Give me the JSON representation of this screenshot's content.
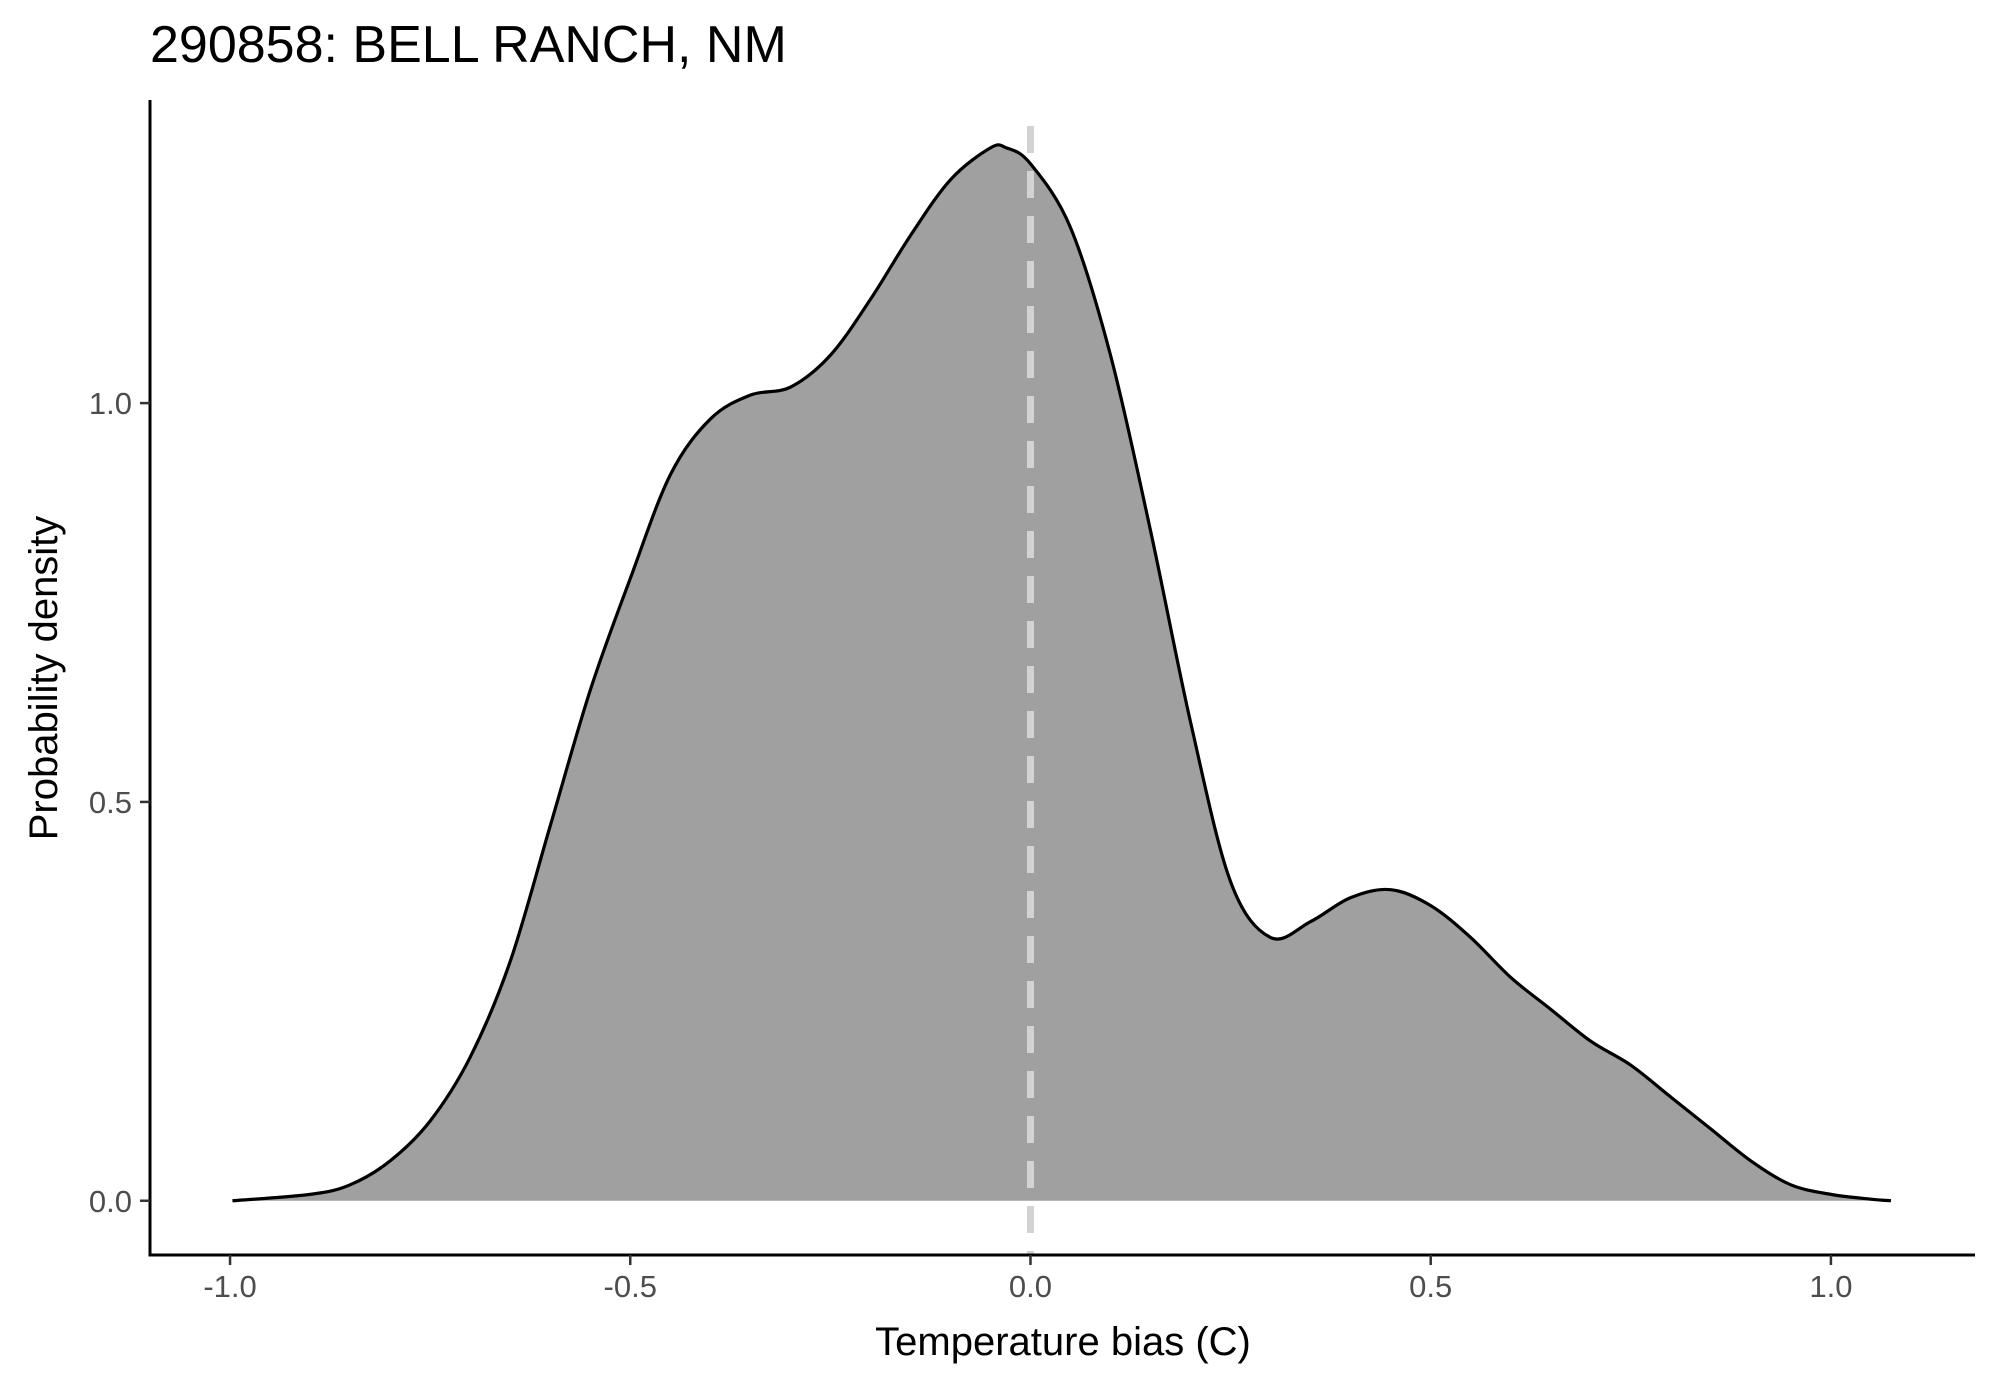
{
  "chart_data": {
    "type": "area",
    "title": "290858: BELL RANCH, NM",
    "xlabel": "Temperature bias (C)",
    "ylabel": "Probability density",
    "xlim": [
      -1.1,
      1.18
    ],
    "ylim": [
      -0.068,
      1.38
    ],
    "x_ticks": [
      -1.0,
      -0.5,
      0.0,
      0.5,
      1.0
    ],
    "x_tick_labels": [
      "-1.0",
      "-0.5",
      "0.0",
      "0.5",
      "1.0"
    ],
    "y_ticks": [
      0.0,
      0.5,
      1.0
    ],
    "y_tick_labels": [
      "0.0",
      "0.5",
      "1.0"
    ],
    "reference_line": {
      "x": 0.0,
      "style": "dashed",
      "color": "#d3d3d3"
    },
    "fill_color": "#a0a0a0",
    "line_color": "#000000",
    "grid": false,
    "series": [
      {
        "x": [
          -0.997,
          -0.9,
          -0.85,
          -0.8,
          -0.75,
          -0.7,
          -0.65,
          -0.6,
          -0.55,
          -0.5,
          -0.45,
          -0.4,
          -0.35,
          -0.3,
          -0.25,
          -0.2,
          -0.15,
          -0.1,
          -0.05,
          -0.03,
          0.0,
          0.05,
          0.1,
          0.15,
          0.2,
          0.25,
          0.3,
          0.35,
          0.4,
          0.45,
          0.5,
          0.55,
          0.6,
          0.65,
          0.7,
          0.75,
          0.8,
          0.85,
          0.9,
          0.95,
          1.0,
          1.05,
          1.075
        ],
        "y": [
          0.0,
          0.008,
          0.02,
          0.05,
          0.1,
          0.18,
          0.3,
          0.47,
          0.64,
          0.78,
          0.91,
          0.98,
          1.01,
          1.02,
          1.06,
          1.13,
          1.21,
          1.28,
          1.32,
          1.32,
          1.3,
          1.22,
          1.06,
          0.84,
          0.6,
          0.4,
          0.33,
          0.35,
          0.38,
          0.39,
          0.37,
          0.33,
          0.28,
          0.24,
          0.2,
          0.17,
          0.13,
          0.09,
          0.05,
          0.02,
          0.008,
          0.002,
          0.0
        ]
      }
    ]
  }
}
